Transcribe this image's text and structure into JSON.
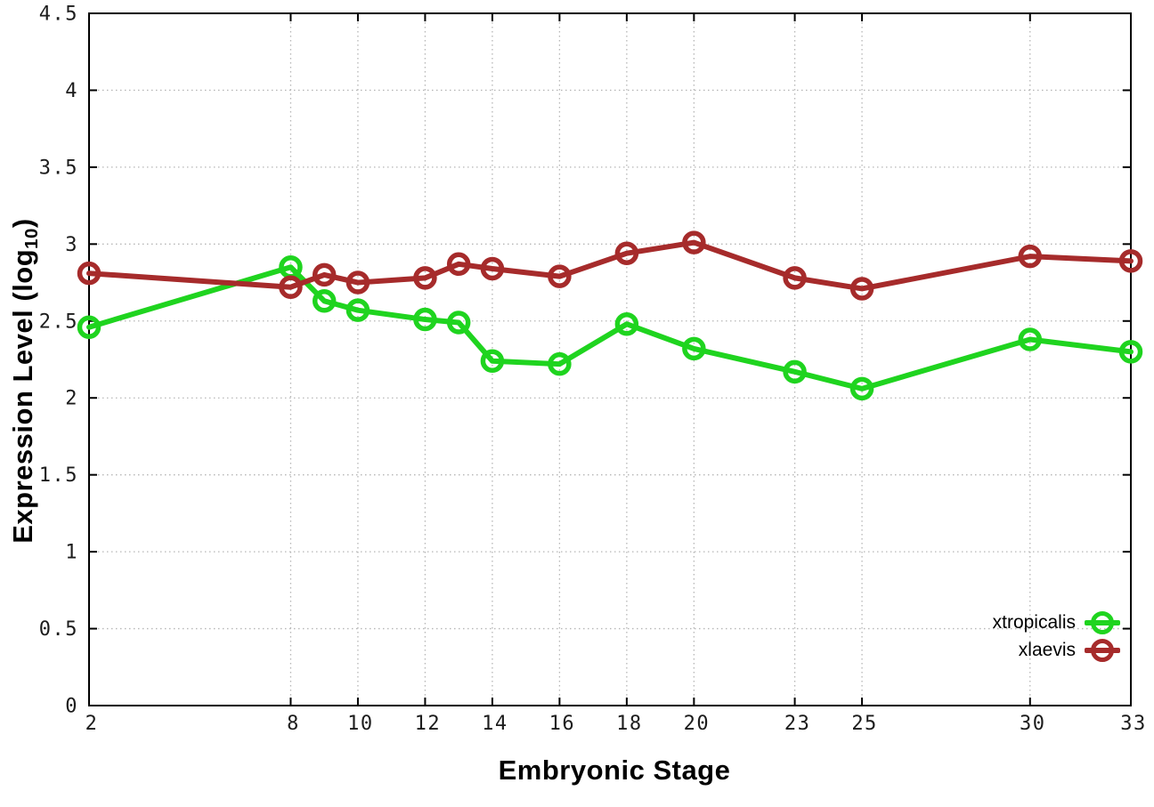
{
  "chart_data": {
    "type": "line",
    "title": "",
    "xlabel": "Embryonic Stage",
    "ylabel": {
      "base": "Expression Level (log",
      "sub": "10",
      "close": ")"
    },
    "x": [
      2,
      8,
      9,
      10,
      12,
      13,
      14,
      16,
      18,
      20,
      23,
      25,
      30,
      33
    ],
    "xticks": [
      2,
      8,
      10,
      12,
      14,
      16,
      18,
      20,
      23,
      25,
      30,
      33
    ],
    "xtick_labels": [
      "2",
      "8",
      "10",
      "12",
      "14",
      "16",
      "18",
      "20",
      "23",
      "25",
      "30",
      "33"
    ],
    "yticks": [
      0,
      0.5,
      1,
      1.5,
      2,
      2.5,
      3,
      3.5,
      4,
      4.5
    ],
    "ytick_labels": [
      "0",
      "0.5",
      "1",
      "1.5",
      "2",
      "2.5",
      "3",
      "3.5",
      "4",
      "4.5"
    ],
    "xlim": [
      2,
      33
    ],
    "ylim": [
      0,
      4.5
    ],
    "grid": true,
    "legend_position": "bottom-right",
    "series": [
      {
        "name": "xtropicalis",
        "color": "#1fd41f",
        "values": [
          2.46,
          2.85,
          2.63,
          2.57,
          2.51,
          2.49,
          2.24,
          2.22,
          2.48,
          2.32,
          2.17,
          2.06,
          2.38,
          2.3
        ]
      },
      {
        "name": "xlaevis",
        "color": "#a62b2b",
        "values": [
          2.81,
          2.72,
          2.8,
          2.75,
          2.78,
          2.87,
          2.84,
          2.79,
          2.94,
          3.01,
          2.78,
          2.71,
          2.92,
          2.89
        ]
      }
    ]
  },
  "colors": {
    "axis": "#000000",
    "grid": "#b6b6b6",
    "tick_text": "#1c1c1c",
    "background": "#ffffff"
  }
}
